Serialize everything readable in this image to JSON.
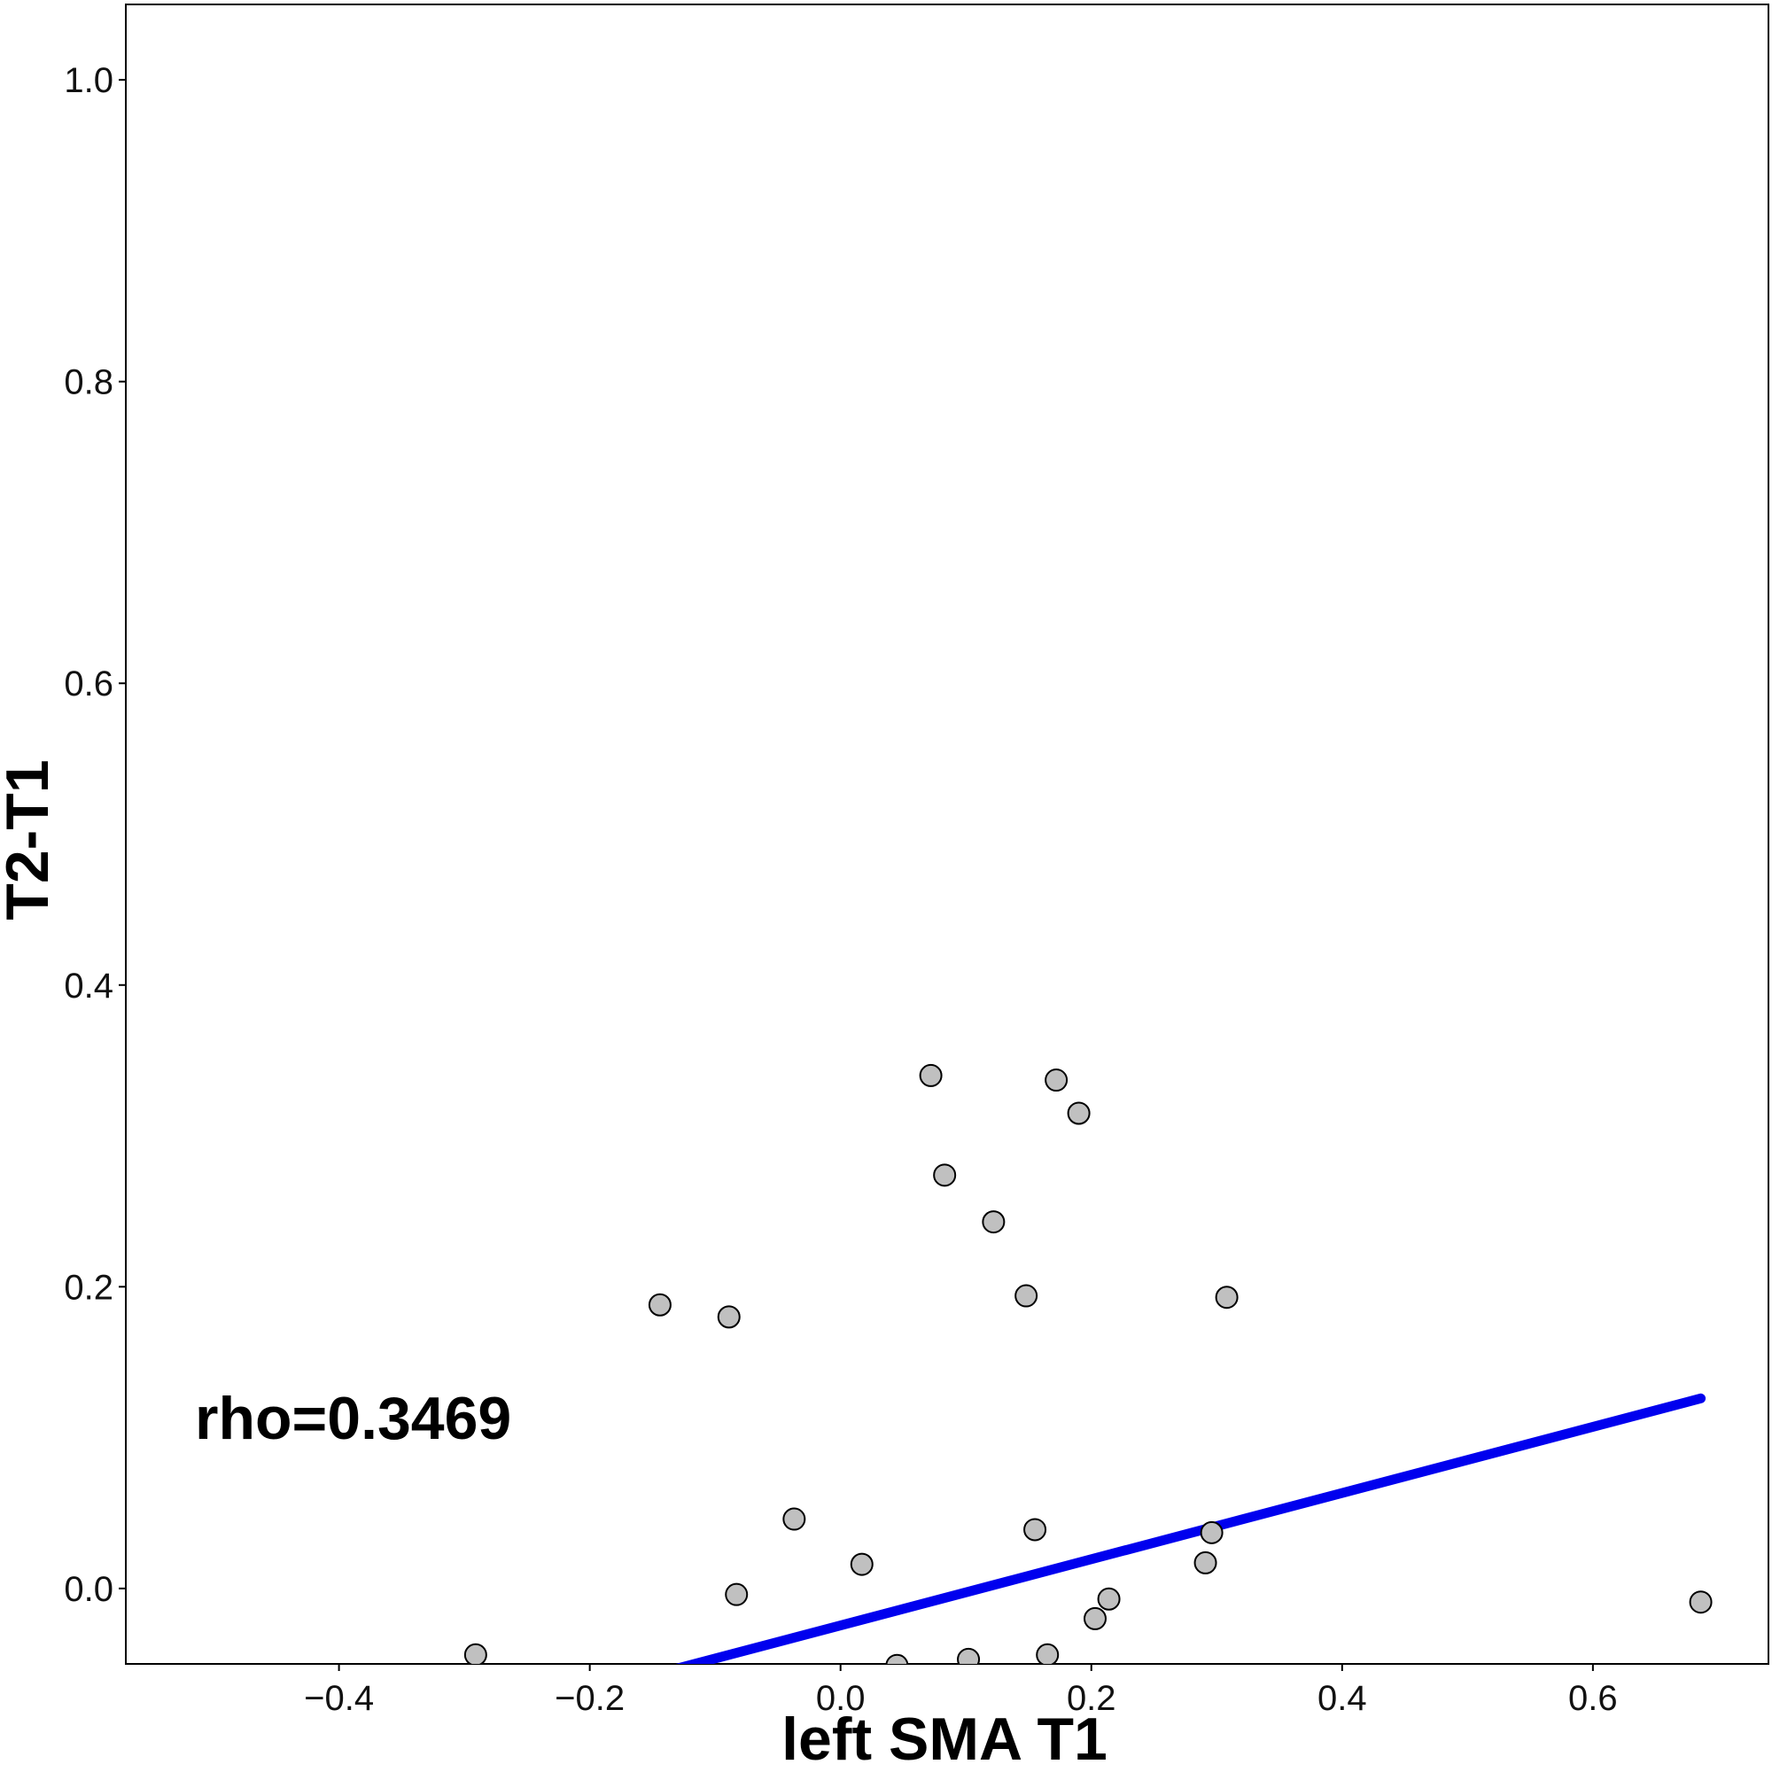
{
  "chart_data": {
    "type": "scatter",
    "xlabel": "left SMA T1",
    "ylabel": "T2-T1",
    "annotation": "rho=0.3469",
    "xlim": [
      -0.57,
      0.74
    ],
    "ylim": [
      -0.05,
      1.05
    ],
    "x_ticks": [
      -0.4,
      -0.2,
      0.0,
      0.2,
      0.4,
      0.6
    ],
    "x_tick_labels": [
      "−0.4",
      "−0.2",
      "0.0",
      "0.2",
      "0.4",
      "0.6"
    ],
    "y_ticks": [
      0.0,
      0.2,
      0.4,
      0.6,
      0.8,
      1.0
    ],
    "y_tick_labels": [
      "0.0",
      "0.2",
      "0.4",
      "0.6",
      "0.8",
      "1.0"
    ],
    "grid": false,
    "points": [
      {
        "x": -0.144,
        "y": 0.188
      },
      {
        "x": -0.089,
        "y": 0.18
      },
      {
        "x": 0.072,
        "y": 0.34
      },
      {
        "x": 0.172,
        "y": 0.337
      },
      {
        "x": 0.19,
        "y": 0.315
      },
      {
        "x": 0.083,
        "y": 0.274
      },
      {
        "x": 0.122,
        "y": 0.243
      },
      {
        "x": 0.148,
        "y": 0.194
      },
      {
        "x": 0.308,
        "y": 0.193
      },
      {
        "x": -0.037,
        "y": 0.046
      },
      {
        "x": 0.155,
        "y": 0.039
      },
      {
        "x": 0.296,
        "y": 0.037
      },
      {
        "x": 0.017,
        "y": 0.016
      },
      {
        "x": 0.291,
        "y": 0.017
      },
      {
        "x": -0.083,
        "y": -0.004
      },
      {
        "x": 0.214,
        "y": -0.007
      },
      {
        "x": 0.686,
        "y": -0.009
      },
      {
        "x": 0.203,
        "y": -0.02
      },
      {
        "x": -0.291,
        "y": -0.044
      },
      {
        "x": 0.165,
        "y": -0.044
      },
      {
        "x": 0.102,
        "y": -0.047
      },
      {
        "x": 0.045,
        "y": -0.051
      }
    ],
    "regression_line": {
      "x": [
        -0.13,
        0.686
      ],
      "y": [
        -0.053,
        0.126
      ]
    },
    "colors": {
      "point_fill": "#c0c0c0",
      "point_stroke": "#000000",
      "line": "#0000ee",
      "frame": "#000000"
    }
  }
}
